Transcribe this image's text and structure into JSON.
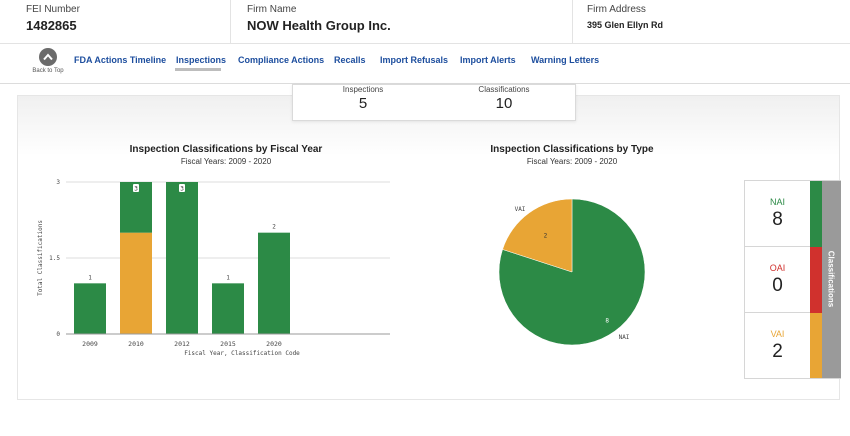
{
  "header": {
    "fei_label": "FEI Number",
    "fei_value": "1482865",
    "firm_name_label": "Firm Name",
    "firm_name_value": "NOW Health Group Inc.",
    "firm_address_label": "Firm Address",
    "firm_address_value": "395 Glen Ellyn Rd"
  },
  "nav": {
    "back_to_top": "Back to Top",
    "tabs": [
      "FDA Actions Timeline",
      "Inspections",
      "Compliance Actions",
      "Recalls",
      "Import Refusals",
      "Import Alerts",
      "Warning Letters"
    ],
    "active_tab": "Inspections"
  },
  "summary": {
    "inspections_label": "Inspections",
    "inspections_value": "5",
    "classifications_label": "Classifications",
    "classifications_value": "10"
  },
  "colors": {
    "nai": "#2c8a46",
    "oai": "#d0312d",
    "vai": "#e8a535"
  },
  "chart_data": [
    {
      "type": "bar",
      "title": "Inspection Classifications by Fiscal Year",
      "subtitle": "Fiscal Years: 2009 - 2020",
      "xlabel": "Fiscal Year, Classification Code",
      "ylabel": "Total Classifications",
      "categories": [
        "2009",
        "2010",
        "2012",
        "2015",
        "2020"
      ],
      "series": [
        {
          "name": "VAI",
          "values": [
            0,
            2,
            0,
            0,
            0
          ]
        },
        {
          "name": "NAI",
          "values": [
            1,
            1,
            3,
            1,
            2
          ]
        }
      ],
      "totals": [
        "1",
        "3",
        "3",
        "1",
        "2"
      ],
      "yticks": [
        "0",
        "1.5",
        "3"
      ],
      "ylim": [
        0,
        3
      ]
    },
    {
      "type": "pie",
      "title": "Inspection Classifications by Type",
      "subtitle": "Fiscal Years: 2009 - 2020",
      "slices": [
        {
          "name": "NAI",
          "value": 8
        },
        {
          "name": "VAI",
          "value": 2
        }
      ]
    }
  ],
  "classifications_card": {
    "title": "Classifications",
    "items": [
      {
        "code": "NAI",
        "count": "8"
      },
      {
        "code": "OAI",
        "count": "0"
      },
      {
        "code": "VAI",
        "count": "2"
      }
    ]
  }
}
